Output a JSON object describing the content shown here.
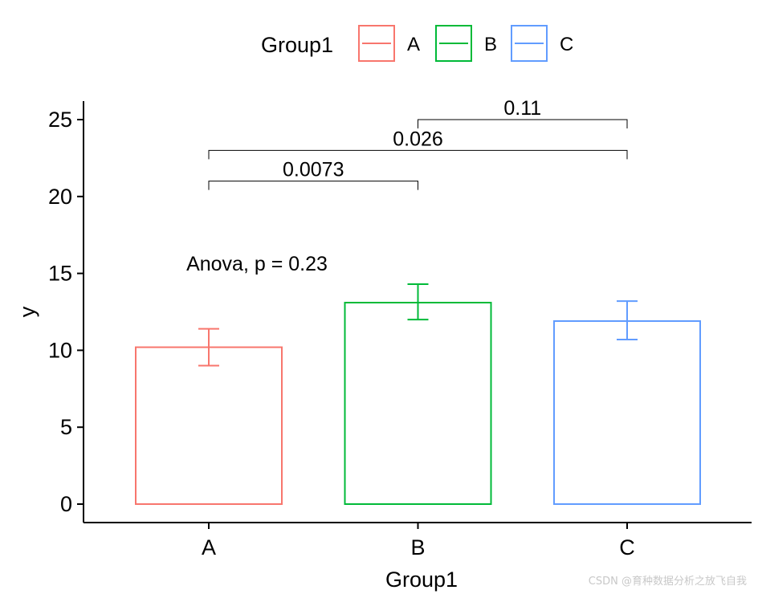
{
  "chart_data": {
    "type": "bar",
    "categories": [
      "A",
      "B",
      "C"
    ],
    "values": [
      10.2,
      13.1,
      11.9
    ],
    "error_low": [
      9.0,
      12.0,
      10.7
    ],
    "error_high": [
      11.4,
      14.3,
      13.2
    ],
    "colors": [
      "#F8766D",
      "#00BA38",
      "#619CFF"
    ],
    "xlabel": "Group1",
    "ylabel": "y",
    "ylim": [
      -1.2,
      26.2
    ],
    "yticks": [
      0,
      5,
      10,
      15,
      20,
      25
    ],
    "legend": {
      "title": "Group1",
      "entries": [
        "A",
        "B",
        "C"
      ],
      "position": "top"
    },
    "annotation": {
      "text": "Anova, p = 0.23",
      "x_category": "A",
      "y": 15.2
    },
    "comparisons": [
      {
        "group1": "A",
        "group2": "B",
        "label": "0.0073",
        "y": 21.0
      },
      {
        "group1": "A",
        "group2": "C",
        "label": "0.026",
        "y": 23.0
      },
      {
        "group1": "B",
        "group2": "C",
        "label": "0.11",
        "y": 25.0
      }
    ]
  },
  "watermark": "CSDN @育种数据分析之放飞自我"
}
